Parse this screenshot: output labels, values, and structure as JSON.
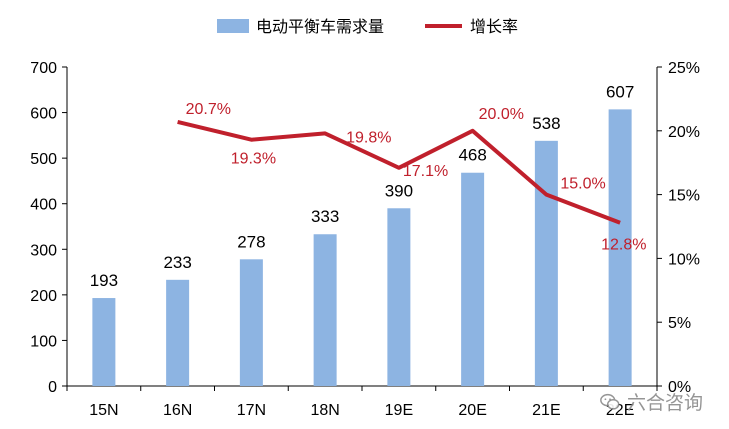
{
  "chart_data": {
    "type": "bar+line",
    "categories": [
      "15N",
      "16N",
      "17N",
      "18N",
      "19E",
      "20E",
      "21E",
      "22E"
    ],
    "series": [
      {
        "name": "电动平衡车需求量",
        "type": "bar",
        "axis": "left",
        "values": [
          193,
          233,
          278,
          333,
          390,
          468,
          538,
          607
        ],
        "labels": [
          "193",
          "233",
          "278",
          "333",
          "390",
          "468",
          "538",
          "607"
        ]
      },
      {
        "name": "增长率",
        "type": "line",
        "axis": "right",
        "values": [
          null,
          20.7,
          19.3,
          19.8,
          17.1,
          20.0,
          15.0,
          12.8
        ],
        "labels": [
          "",
          "20.7%",
          "19.3%",
          "19.8%",
          "17.1%",
          "20.0%",
          "15.0%",
          "12.8%"
        ]
      }
    ],
    "y_left": {
      "min": 0,
      "max": 700,
      "ticks": [
        "0",
        "100",
        "200",
        "300",
        "400",
        "500",
        "600",
        "700"
      ]
    },
    "y_right": {
      "min": 0,
      "max": 25,
      "ticks": [
        "0%",
        "5%",
        "10%",
        "15%",
        "20%",
        "25%"
      ]
    },
    "legend_position": "top",
    "grid": false,
    "colors": {
      "bar": "#8db4e2",
      "line": "#c0202c",
      "line_label": "#c0202c",
      "axis": "#000000",
      "text": "#000000"
    }
  },
  "watermark": {
    "text": "六合咨询",
    "icon": "wechat-icon"
  }
}
